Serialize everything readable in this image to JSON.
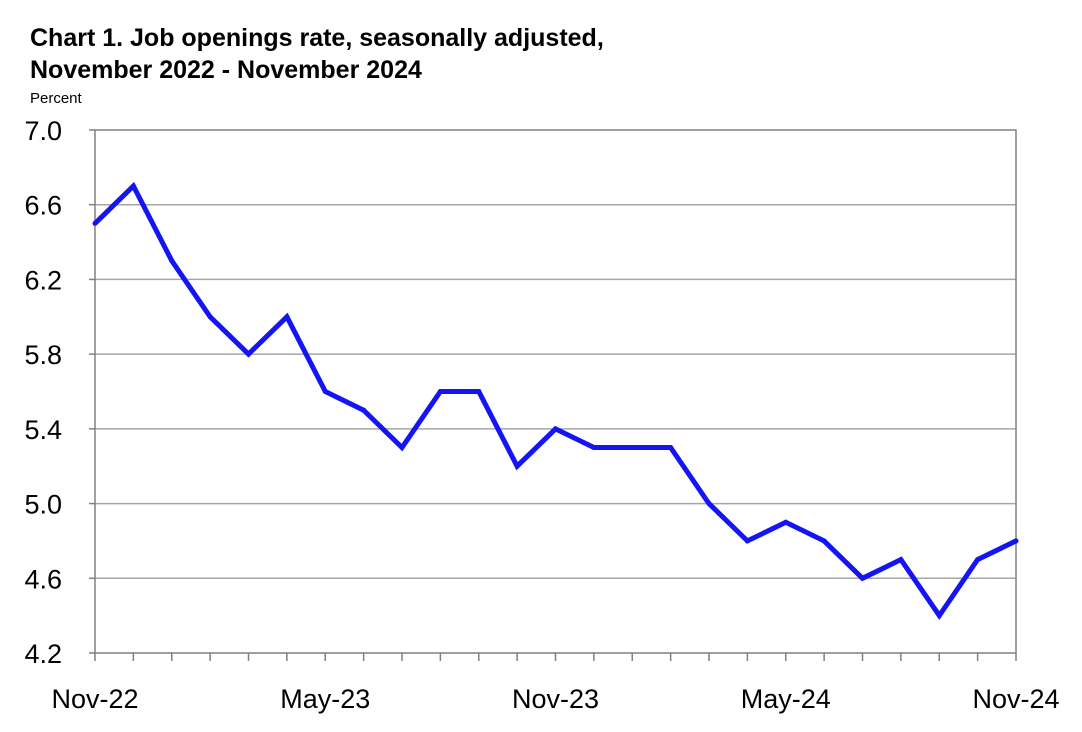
{
  "chart_data": {
    "type": "line",
    "title_line1": "Chart 1. Job openings rate, seasonally adjusted,",
    "title_line2": "November 2022 - November 2024",
    "ylabel": "Percent",
    "xlabel": "",
    "ylim": [
      4.2,
      7.0
    ],
    "yticks": [
      "7.0",
      "6.6",
      "6.2",
      "5.8",
      "5.4",
      "5.0",
      "4.6",
      "4.2"
    ],
    "xtick_labels": [
      {
        "index": 0,
        "label": "Nov-22"
      },
      {
        "index": 6,
        "label": "May-23"
      },
      {
        "index": 12,
        "label": "Nov-23"
      },
      {
        "index": 18,
        "label": "May-24"
      },
      {
        "index": 24,
        "label": "Nov-24"
      }
    ],
    "grid": true,
    "legend": "none",
    "series": [
      {
        "color": "#1414f5",
        "x": [
          "Nov-22",
          "Dec-22",
          "Jan-23",
          "Feb-23",
          "Mar-23",
          "Apr-23",
          "May-23",
          "Jun-23",
          "Jul-23",
          "Aug-23",
          "Sep-23",
          "Oct-23",
          "Nov-23",
          "Dec-23",
          "Jan-24",
          "Feb-24",
          "Mar-24",
          "Apr-24",
          "May-24",
          "Jun-24",
          "Jul-24",
          "Aug-24",
          "Sep-24",
          "Oct-24",
          "Nov-24"
        ],
        "values": [
          6.5,
          6.7,
          6.3,
          6.0,
          5.8,
          6.0,
          5.6,
          5.5,
          5.3,
          5.6,
          5.6,
          5.2,
          5.4,
          5.3,
          5.3,
          5.3,
          5.0,
          4.8,
          4.9,
          4.8,
          4.6,
          4.7,
          4.4,
          4.7,
          4.8
        ]
      }
    ]
  }
}
